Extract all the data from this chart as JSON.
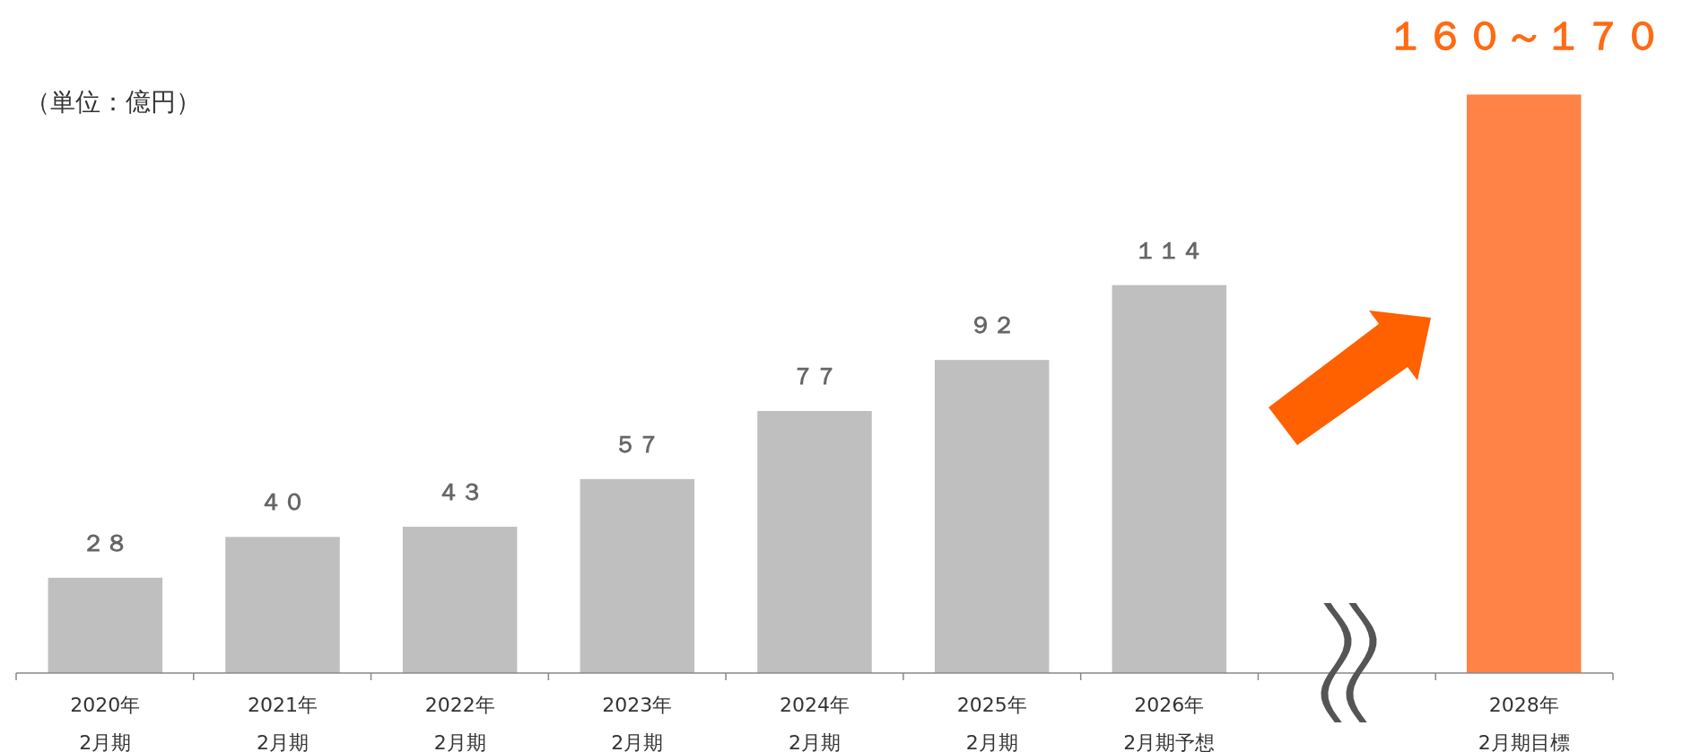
{
  "chart_data": {
    "type": "bar",
    "categories": [
      "2020年\n2月期",
      "2021年\n2月期",
      "2022年\n2月期",
      "2023年\n2月期",
      "2024年\n2月期",
      "2025年\n2月期",
      "2026年\n2月期予想",
      null,
      "2028年\n2月期目標"
    ],
    "values": [
      28,
      40,
      43,
      57,
      77,
      92,
      114,
      null,
      170
    ],
    "colors": [
      "#bfbfbf",
      "#bfbfbf",
      "#bfbfbf",
      "#bfbfbf",
      "#bfbfbf",
      "#bfbfbf",
      "#bfbfbf",
      null,
      "#ff8247"
    ],
    "value_labels": [
      "２８",
      "４０",
      "４３",
      "５７",
      "７７",
      "９２",
      "１１４",
      null,
      "１６０～１７０"
    ],
    "annotations": [
      "（単位：億円）"
    ]
  }
}
